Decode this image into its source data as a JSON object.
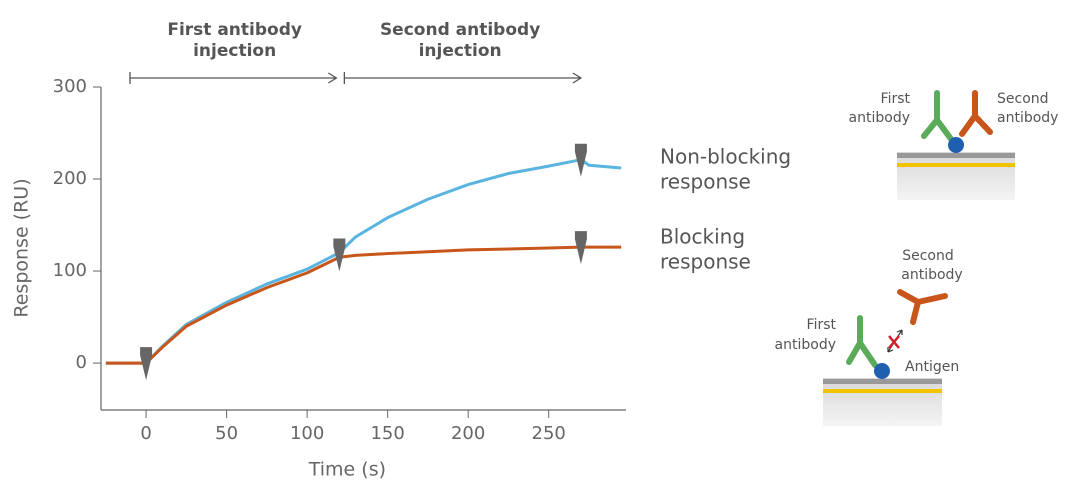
{
  "chart_data": {
    "type": "line",
    "x_label": "Time (s)",
    "y_label": "Response (RU)",
    "xlim": [
      -28,
      298
    ],
    "ylim": [
      -51,
      300
    ],
    "xticks": [
      0,
      50,
      100,
      150,
      200,
      250
    ],
    "yticks": [
      0,
      100,
      200,
      300
    ],
    "x": [
      -25,
      0,
      10,
      25,
      50,
      75,
      100,
      120,
      130,
      150,
      175,
      200,
      225,
      250,
      270,
      275,
      295
    ],
    "series": [
      {
        "name": "Non-blocking response",
        "lines": [
          "Non-blocking",
          "response"
        ],
        "color": "#5ab4e0",
        "values": [
          0,
          0,
          18,
          42,
          66,
          86,
          102,
          120,
          137,
          158,
          178,
          194,
          206,
          214,
          221,
          215,
          212
        ]
      },
      {
        "name": "Blocking response",
        "lines": [
          "Blocking",
          "response"
        ],
        "color": "#c8561a",
        "values": [
          0,
          0,
          17,
          40,
          63,
          82,
          98,
          115,
          117,
          119,
          121,
          123,
          124,
          125,
          126,
          126,
          126
        ]
      }
    ],
    "markers": {
      "x": [
        0,
        120,
        270,
        270
      ],
      "y": [
        0,
        118,
        126,
        221
      ]
    },
    "injections": [
      {
        "lines": [
          "First antibody",
          "injection"
        ],
        "span": [
          -10,
          120
        ]
      },
      {
        "lines": [
          "Second antibody",
          "injection"
        ],
        "span": [
          120,
          270
        ]
      }
    ]
  },
  "diagrams": {
    "non_blocking": {
      "first": [
        "First",
        "antibody"
      ],
      "second": [
        "Second",
        "antibody"
      ]
    },
    "blocking": {
      "first": [
        "First",
        "antibody"
      ],
      "second": [
        "Second",
        "antibody"
      ],
      "antigen": "Antigen"
    }
  }
}
